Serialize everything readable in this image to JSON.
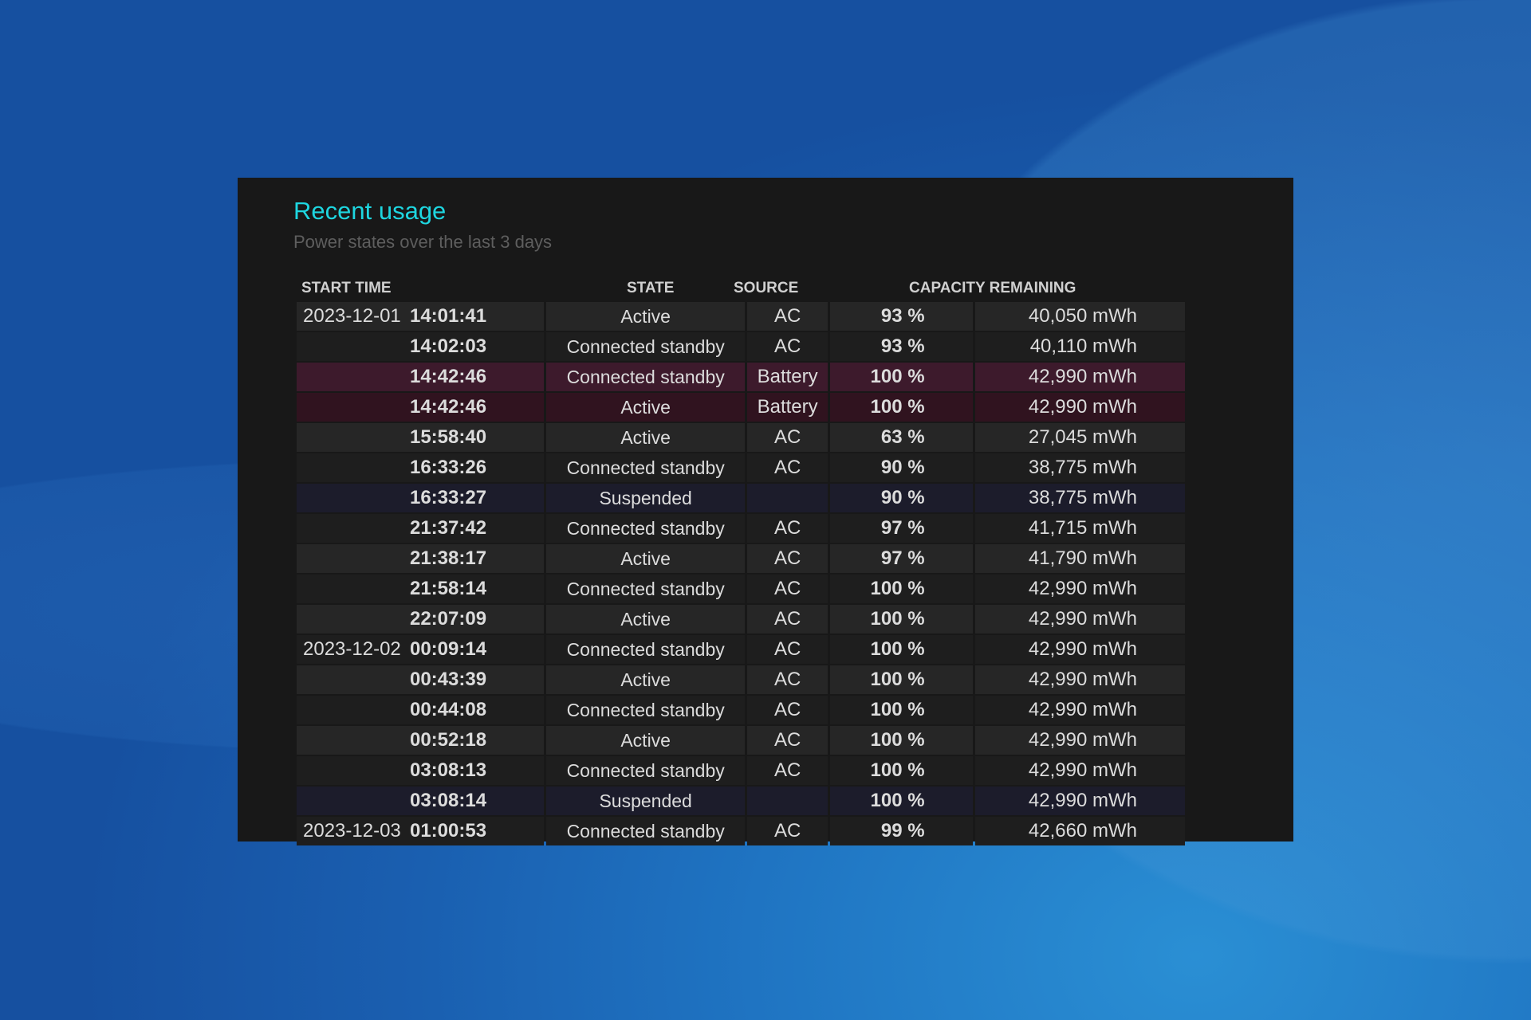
{
  "title": "Recent usage",
  "subtitle": "Power states over the last 3 days",
  "columns": {
    "start_time": "START TIME",
    "state": "STATE",
    "source": "SOURCE",
    "capacity": "CAPACITY REMAINING"
  },
  "colors": {
    "accent": "#1ed6e0",
    "battery_row": "#3d1a2c",
    "suspended_row": "#1c1c2b"
  },
  "rows": [
    {
      "date": "2023-12-01",
      "time": "14:01:41",
      "state": "Active",
      "source": "AC",
      "percent": "93 %",
      "capacity": "40,050 mWh",
      "kind": "odd"
    },
    {
      "date": "",
      "time": "14:02:03",
      "state": "Connected standby",
      "source": "AC",
      "percent": "93 %",
      "capacity": "40,110 mWh",
      "kind": "even"
    },
    {
      "date": "",
      "time": "14:42:46",
      "state": "Connected standby",
      "source": "Battery",
      "percent": "100 %",
      "capacity": "42,990 mWh",
      "kind": "bat1"
    },
    {
      "date": "",
      "time": "14:42:46",
      "state": "Active",
      "source": "Battery",
      "percent": "100 %",
      "capacity": "42,990 mWh",
      "kind": "bat2"
    },
    {
      "date": "",
      "time": "15:58:40",
      "state": "Active",
      "source": "AC",
      "percent": "63 %",
      "capacity": "27,045 mWh",
      "kind": "odd"
    },
    {
      "date": "",
      "time": "16:33:26",
      "state": "Connected standby",
      "source": "AC",
      "percent": "90 %",
      "capacity": "38,775 mWh",
      "kind": "even"
    },
    {
      "date": "",
      "time": "16:33:27",
      "state": "Suspended",
      "source": "",
      "percent": "90 %",
      "capacity": "38,775 mWh",
      "kind": "susp"
    },
    {
      "date": "",
      "time": "21:37:42",
      "state": "Connected standby",
      "source": "AC",
      "percent": "97 %",
      "capacity": "41,715 mWh",
      "kind": "even"
    },
    {
      "date": "",
      "time": "21:38:17",
      "state": "Active",
      "source": "AC",
      "percent": "97 %",
      "capacity": "41,790 mWh",
      "kind": "odd"
    },
    {
      "date": "",
      "time": "21:58:14",
      "state": "Connected standby",
      "source": "AC",
      "percent": "100 %",
      "capacity": "42,990 mWh",
      "kind": "even"
    },
    {
      "date": "",
      "time": "22:07:09",
      "state": "Active",
      "source": "AC",
      "percent": "100 %",
      "capacity": "42,990 mWh",
      "kind": "odd"
    },
    {
      "date": "2023-12-02",
      "time": "00:09:14",
      "state": "Connected standby",
      "source": "AC",
      "percent": "100 %",
      "capacity": "42,990 mWh",
      "kind": "even"
    },
    {
      "date": "",
      "time": "00:43:39",
      "state": "Active",
      "source": "AC",
      "percent": "100 %",
      "capacity": "42,990 mWh",
      "kind": "odd"
    },
    {
      "date": "",
      "time": "00:44:08",
      "state": "Connected standby",
      "source": "AC",
      "percent": "100 %",
      "capacity": "42,990 mWh",
      "kind": "even"
    },
    {
      "date": "",
      "time": "00:52:18",
      "state": "Active",
      "source": "AC",
      "percent": "100 %",
      "capacity": "42,990 mWh",
      "kind": "odd"
    },
    {
      "date": "",
      "time": "03:08:13",
      "state": "Connected standby",
      "source": "AC",
      "percent": "100 %",
      "capacity": "42,990 mWh",
      "kind": "even"
    },
    {
      "date": "",
      "time": "03:08:14",
      "state": "Suspended",
      "source": "",
      "percent": "100 %",
      "capacity": "42,990 mWh",
      "kind": "susp"
    },
    {
      "date": "2023-12-03",
      "time": "01:00:53",
      "state": "Connected standby",
      "source": "AC",
      "percent": "99 %",
      "capacity": "42,660 mWh",
      "kind": "even"
    }
  ]
}
